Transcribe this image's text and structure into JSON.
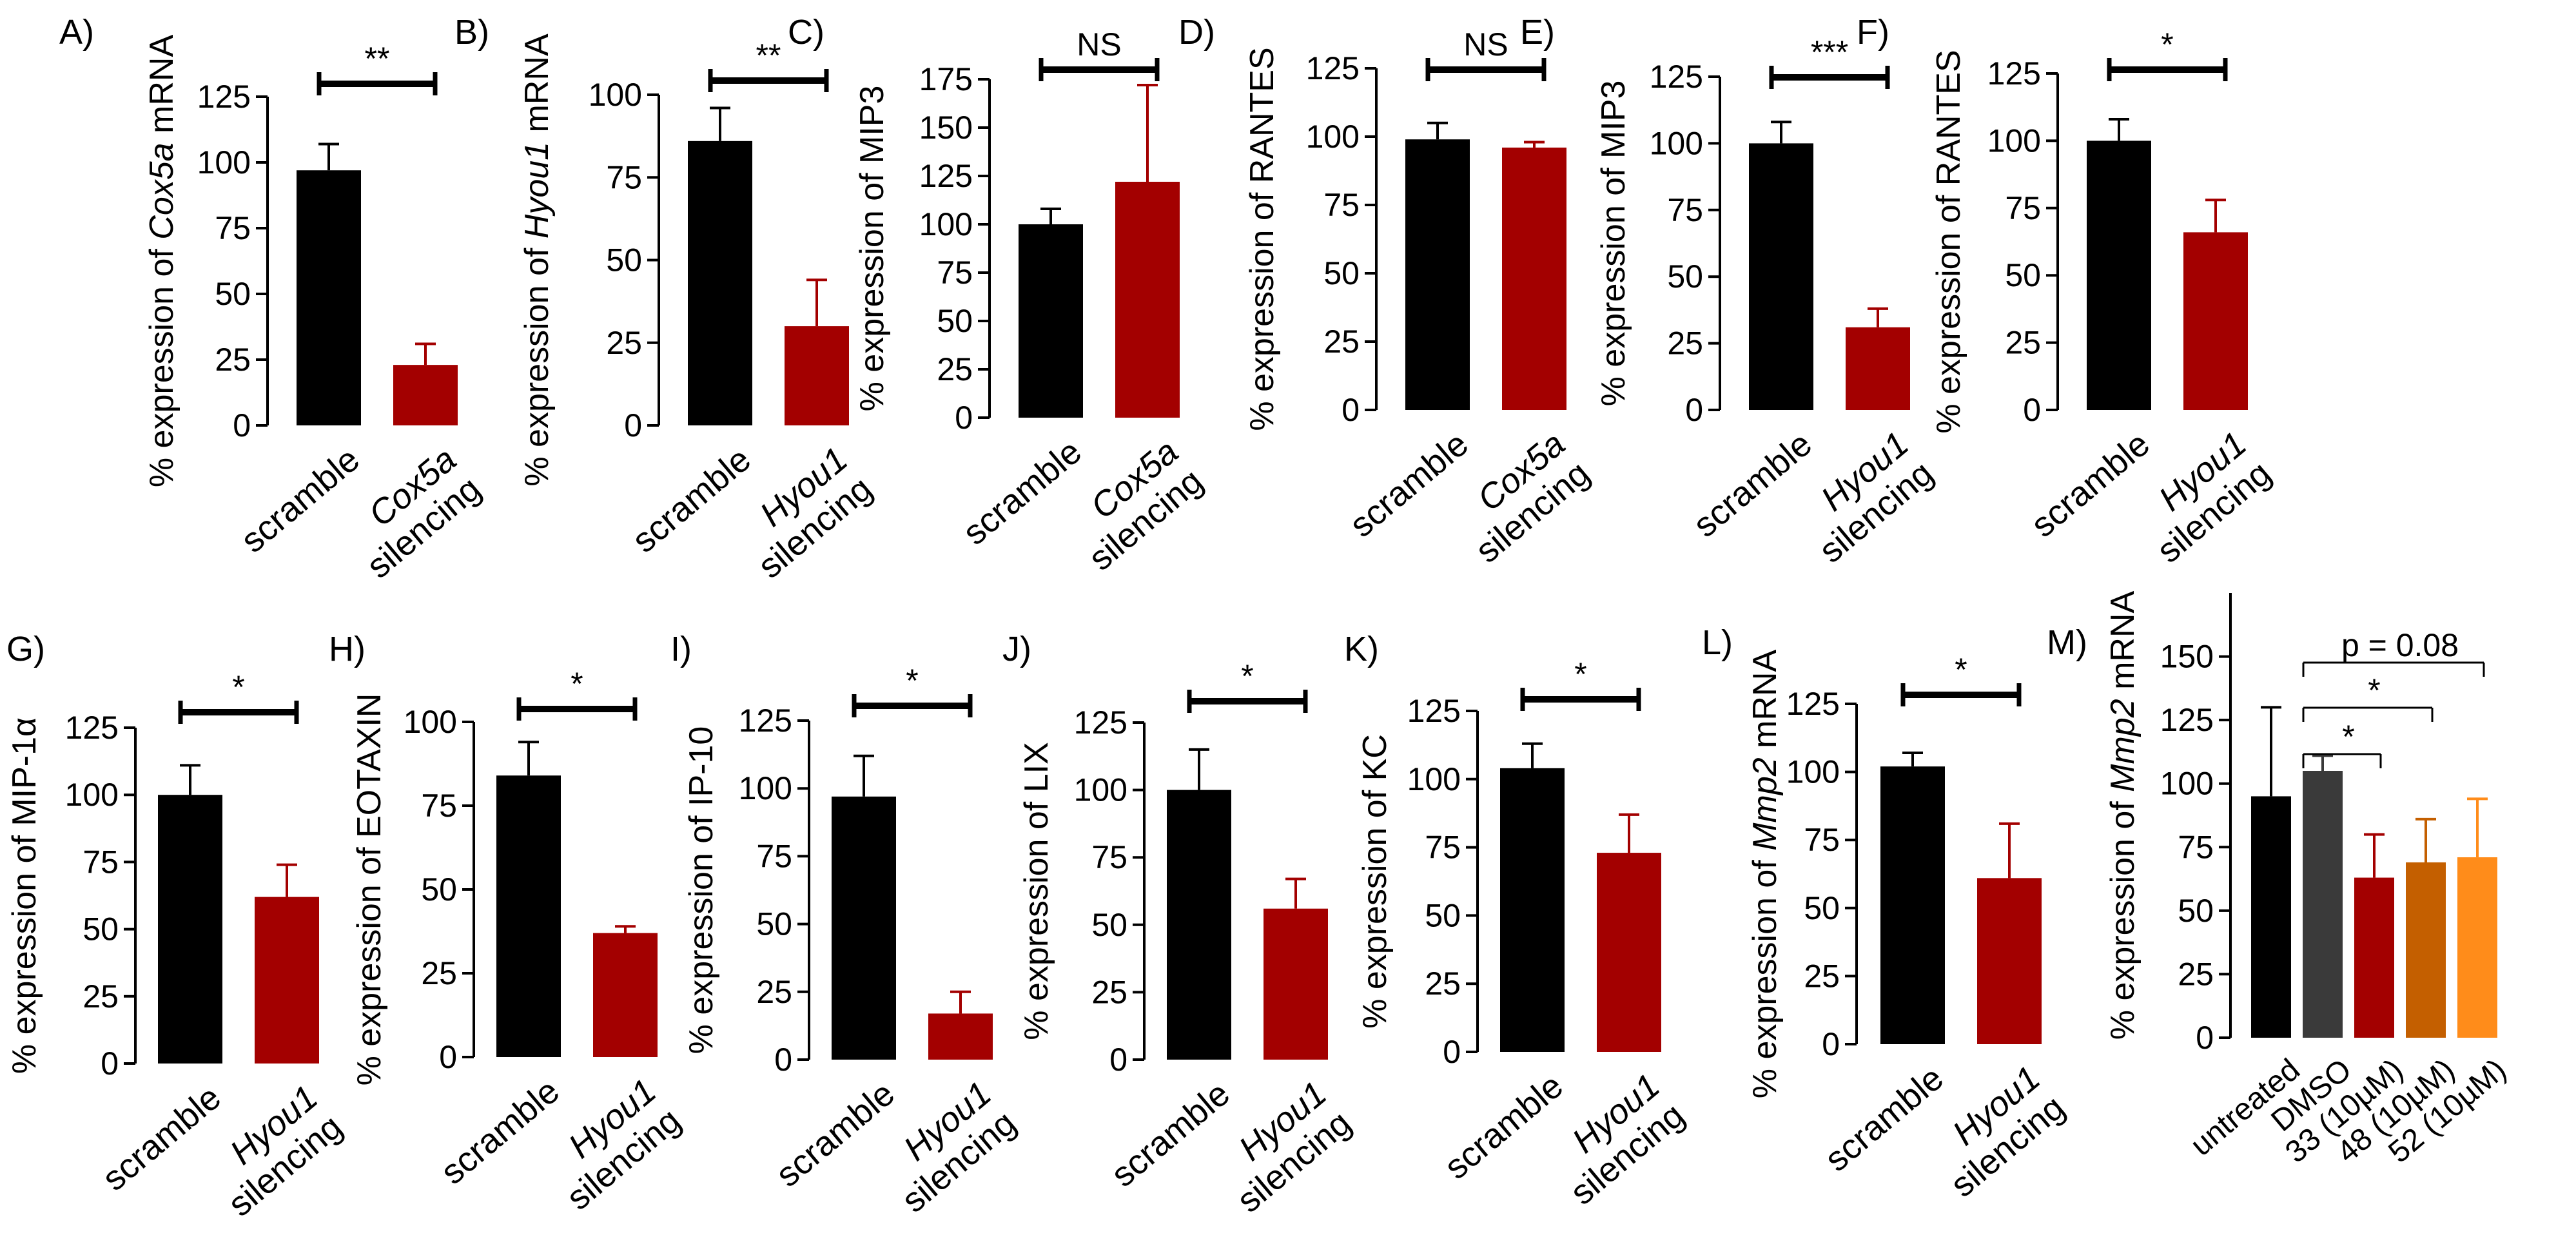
{
  "chart_data": [
    {
      "panel": "A)",
      "type": "bar",
      "ylabel_parts": [
        "% expression of ",
        {
          "t": "Cox5a",
          "i": true
        },
        " mRNA"
      ],
      "ticks": [
        0,
        25,
        50,
        75,
        100,
        125
      ],
      "ylim": [
        0,
        125
      ],
      "categories": [
        [
          "scramble"
        ],
        [
          {
            "t": "Cox5a",
            "i": true
          },
          "silencing"
        ]
      ],
      "values": [
        97,
        23
      ],
      "errors": [
        10,
        8
      ],
      "colors": [
        "#000000",
        "#a30000"
      ],
      "sig": [
        {
          "from": 0,
          "to": 1,
          "label": "**"
        }
      ]
    },
    {
      "panel": "B)",
      "type": "bar",
      "ylabel_parts": [
        "% expression of ",
        {
          "t": "Hyou1",
          "i": true
        },
        " mRNA"
      ],
      "ticks": [
        0,
        25,
        50,
        75,
        100
      ],
      "ylim": [
        0,
        100
      ],
      "categories": [
        [
          "scramble"
        ],
        [
          {
            "t": "Hyou1",
            "i": true
          },
          "silencing"
        ]
      ],
      "values": [
        86,
        30
      ],
      "errors": [
        10,
        14
      ],
      "colors": [
        "#000000",
        "#a30000"
      ],
      "sig": [
        {
          "from": 0,
          "to": 1,
          "label": "**"
        }
      ]
    },
    {
      "panel": "C)",
      "type": "bar",
      "ylabel_parts": [
        "% expression of MIP3"
      ],
      "ticks": [
        0,
        25,
        50,
        75,
        100,
        125,
        150,
        175
      ],
      "ylim": [
        0,
        175
      ],
      "categories": [
        [
          "scramble"
        ],
        [
          {
            "t": "Cox5a",
            "i": true
          },
          "silencing"
        ]
      ],
      "values": [
        100,
        122
      ],
      "errors": [
        8,
        50
      ],
      "colors": [
        "#000000",
        "#a30000"
      ],
      "sig": [
        {
          "from": 0,
          "to": 1,
          "label": "NS"
        }
      ]
    },
    {
      "panel": "D)",
      "type": "bar",
      "ylabel_parts": [
        "% expression of RANTES"
      ],
      "ticks": [
        0,
        25,
        50,
        75,
        100,
        125
      ],
      "ylim": [
        0,
        125
      ],
      "categories": [
        [
          "scramble"
        ],
        [
          {
            "t": "Cox5a",
            "i": true
          },
          "silencing"
        ]
      ],
      "values": [
        99,
        96
      ],
      "errors": [
        6,
        2
      ],
      "colors": [
        "#000000",
        "#a30000"
      ],
      "sig": [
        {
          "from": 0,
          "to": 1,
          "label": "NS"
        }
      ]
    },
    {
      "panel": "E)",
      "type": "bar",
      "ylabel_parts": [
        "% expression of MIP3"
      ],
      "ticks": [
        0,
        25,
        50,
        75,
        100,
        125
      ],
      "ylim": [
        0,
        125
      ],
      "categories": [
        [
          "scramble"
        ],
        [
          {
            "t": "Hyou1",
            "i": true
          },
          "silencing"
        ]
      ],
      "values": [
        100,
        31
      ],
      "errors": [
        8,
        7
      ],
      "colors": [
        "#000000",
        "#a30000"
      ],
      "sig": [
        {
          "from": 0,
          "to": 1,
          "label": "***"
        }
      ]
    },
    {
      "panel": "F)",
      "type": "bar",
      "ylabel_parts": [
        "% expression of RANTES"
      ],
      "ticks": [
        0,
        25,
        50,
        75,
        100,
        125
      ],
      "ylim": [
        0,
        125
      ],
      "categories": [
        [
          "scramble"
        ],
        [
          {
            "t": "Hyou1",
            "i": true
          },
          "silencing"
        ]
      ],
      "values": [
        100,
        66
      ],
      "errors": [
        8,
        12
      ],
      "colors": [
        "#000000",
        "#a30000"
      ],
      "sig": [
        {
          "from": 0,
          "to": 1,
          "label": "*"
        }
      ]
    },
    {
      "panel": "G)",
      "type": "bar",
      "ylabel_parts": [
        "% expression of MIP-1α"
      ],
      "ticks": [
        0,
        25,
        50,
        75,
        100,
        125
      ],
      "ylim": [
        0,
        125
      ],
      "categories": [
        [
          "scramble"
        ],
        [
          {
            "t": "Hyou1",
            "i": true
          },
          "silencing"
        ]
      ],
      "values": [
        100,
        62
      ],
      "errors": [
        11,
        12
      ],
      "colors": [
        "#000000",
        "#a30000"
      ],
      "sig": [
        {
          "from": 0,
          "to": 1,
          "label": "*"
        }
      ]
    },
    {
      "panel": "H)",
      "type": "bar",
      "ylabel_parts": [
        "% expression of EOTAXIN"
      ],
      "ticks": [
        0,
        25,
        50,
        75,
        100
      ],
      "ylim": [
        0,
        100
      ],
      "categories": [
        [
          "scramble"
        ],
        [
          {
            "t": "Hyou1",
            "i": true
          },
          "silencing"
        ]
      ],
      "values": [
        84,
        37
      ],
      "errors": [
        10,
        2
      ],
      "colors": [
        "#000000",
        "#a30000"
      ],
      "sig": [
        {
          "from": 0,
          "to": 1,
          "label": "*"
        }
      ]
    },
    {
      "panel": "I)",
      "type": "bar",
      "ylabel_parts": [
        "% expression of IP-10"
      ],
      "ticks": [
        0,
        25,
        50,
        75,
        100,
        125
      ],
      "ylim": [
        0,
        125
      ],
      "categories": [
        [
          "scramble"
        ],
        [
          {
            "t": "Hyou1",
            "i": true
          },
          "silencing"
        ]
      ],
      "values": [
        97,
        17
      ],
      "errors": [
        15,
        8
      ],
      "colors": [
        "#000000",
        "#a30000"
      ],
      "sig": [
        {
          "from": 0,
          "to": 1,
          "label": "*"
        }
      ]
    },
    {
      "panel": "J)",
      "type": "bar",
      "ylabel_parts": [
        "% expression of LIX"
      ],
      "ticks": [
        0,
        25,
        50,
        75,
        100,
        125
      ],
      "ylim": [
        0,
        125
      ],
      "categories": [
        [
          "scramble"
        ],
        [
          {
            "t": "Hyou1",
            "i": true
          },
          "silencing"
        ]
      ],
      "values": [
        100,
        56
      ],
      "errors": [
        15,
        11
      ],
      "colors": [
        "#000000",
        "#a30000"
      ],
      "sig": [
        {
          "from": 0,
          "to": 1,
          "label": "*"
        }
      ]
    },
    {
      "panel": "K)",
      "type": "bar",
      "ylabel_parts": [
        "% expression of KC"
      ],
      "ticks": [
        0,
        25,
        50,
        75,
        100,
        125
      ],
      "ylim": [
        0,
        125
      ],
      "categories": [
        [
          "scramble"
        ],
        [
          {
            "t": "Hyou1",
            "i": true
          },
          "silencing"
        ]
      ],
      "values": [
        104,
        73
      ],
      "errors": [
        9,
        14
      ],
      "colors": [
        "#000000",
        "#a30000"
      ],
      "sig": [
        {
          "from": 0,
          "to": 1,
          "label": "*"
        }
      ]
    },
    {
      "panel": "L)",
      "type": "bar",
      "ylabel_parts": [
        "% expression of ",
        {
          "t": "Mmp2",
          "i": true
        },
        " mRNA"
      ],
      "ticks": [
        0,
        25,
        50,
        75,
        100,
        125
      ],
      "ylim": [
        0,
        125
      ],
      "categories": [
        [
          "scramble"
        ],
        [
          {
            "t": "Hyou1",
            "i": true
          },
          "silencing"
        ]
      ],
      "values": [
        102,
        61
      ],
      "errors": [
        5,
        20
      ],
      "colors": [
        "#000000",
        "#a30000"
      ],
      "sig": [
        {
          "from": 0,
          "to": 1,
          "label": "*"
        }
      ]
    },
    {
      "panel": "M)",
      "type": "bar",
      "ylabel_parts": [
        "% expression of ",
        {
          "t": "Mmp2",
          "i": true
        },
        " mRNA"
      ],
      "ticks": [
        0,
        25,
        50,
        75,
        100,
        125,
        150
      ],
      "ylim": [
        0,
        175
      ],
      "categories": [
        [
          "untreated"
        ],
        [
          "DMSO"
        ],
        [
          "33 (10µM)"
        ],
        [
          "48 (10µM)"
        ],
        [
          "52 (10µM)"
        ]
      ],
      "values": [
        95,
        105,
        63,
        69,
        71
      ],
      "errors": [
        35,
        6,
        17,
        17,
        23
      ],
      "colors": [
        "#000000",
        "#3a3a3a",
        "#a30000",
        "#c45f00",
        "#ff8c1a"
      ],
      "sig": [
        {
          "from": 1,
          "to": 2,
          "label": "*"
        },
        {
          "from": 1,
          "to": 3,
          "label": "*"
        },
        {
          "from": 1,
          "to": 4,
          "label": "p = 0.08"
        }
      ]
    }
  ]
}
